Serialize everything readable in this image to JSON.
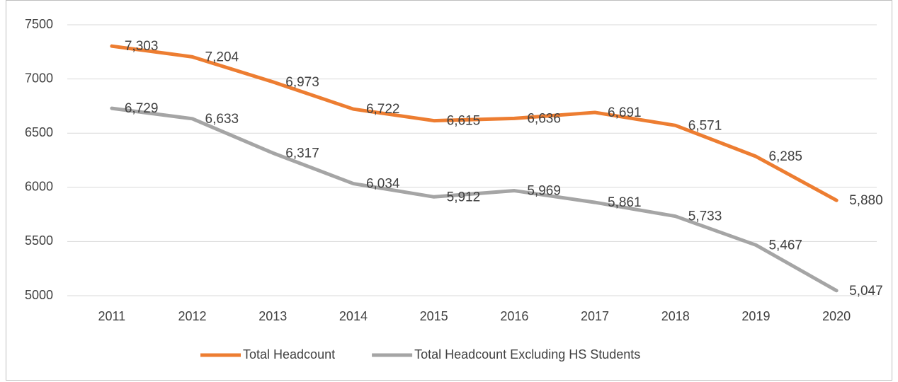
{
  "chart_data": {
    "type": "line",
    "categories": [
      "2011",
      "2012",
      "2013",
      "2014",
      "2015",
      "2016",
      "2017",
      "2018",
      "2019",
      "2020"
    ],
    "series": [
      {
        "name": "Total Headcount",
        "color": "#ed7d31",
        "values": [
          7303,
          7204,
          6973,
          6722,
          6615,
          6636,
          6691,
          6571,
          6285,
          5880
        ],
        "value_labels": [
          "7,303",
          "7,204",
          "6,973",
          "6,722",
          "6,615",
          "6,636",
          "6,691",
          "6,571",
          "6,285",
          "5,880"
        ]
      },
      {
        "name": "Total Headcount Excluding HS Students",
        "color": "#a5a5a5",
        "values": [
          6729,
          6633,
          6317,
          6034,
          5912,
          5969,
          5861,
          5733,
          5467,
          5047
        ],
        "value_labels": [
          "6,729",
          "6,633",
          "6,317",
          "6,034",
          "5,912",
          "5,969",
          "5,861",
          "5,733",
          "5,467",
          "5,047"
        ]
      }
    ],
    "ylim": [
      5000,
      7500
    ],
    "yticks": [
      5000,
      5500,
      6000,
      6500,
      7000,
      7500
    ],
    "grid": true,
    "legend": "bottom"
  }
}
